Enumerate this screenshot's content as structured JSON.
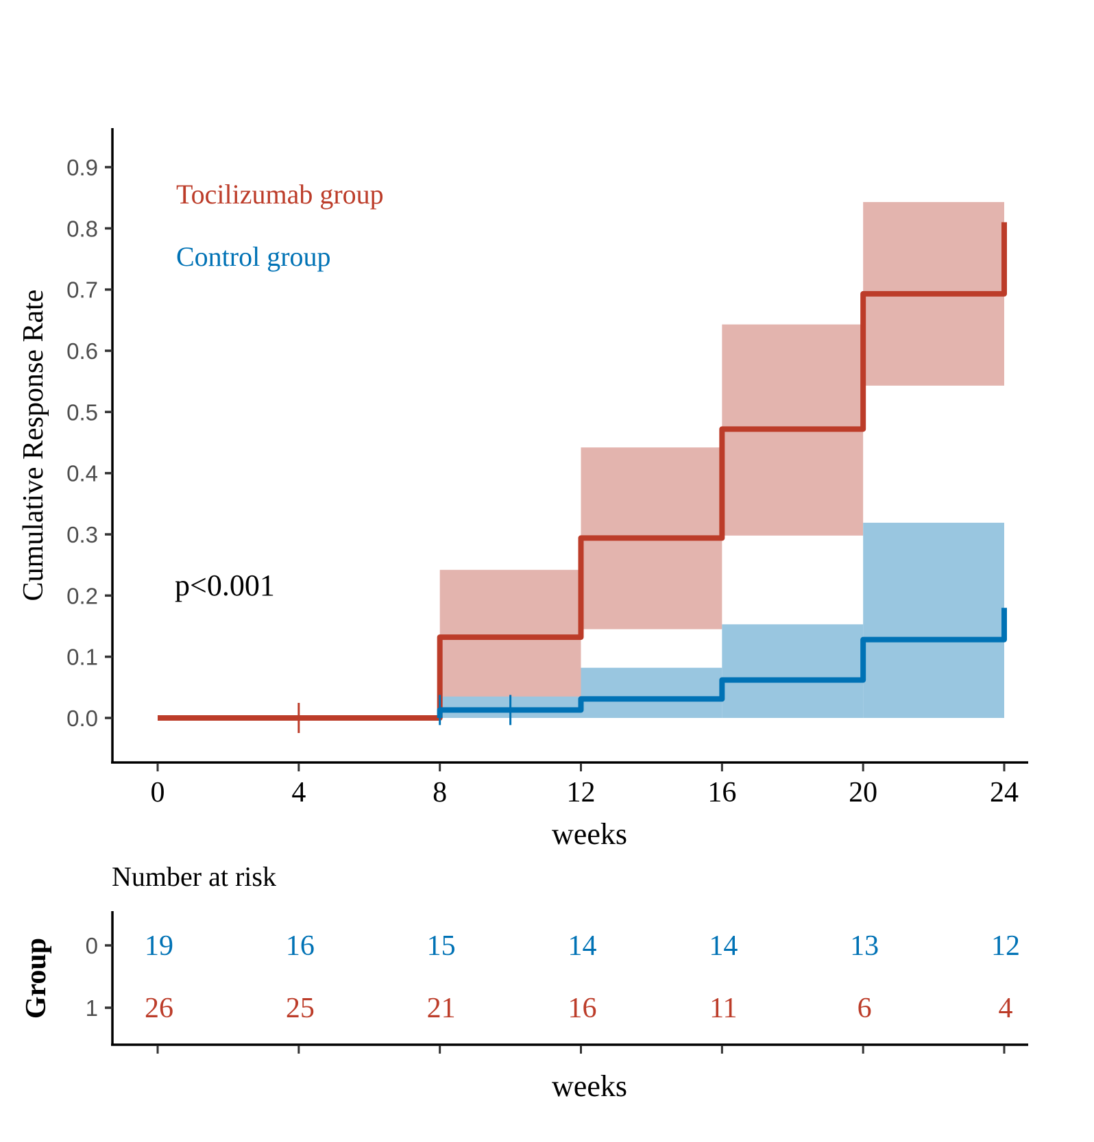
{
  "chart_data": {
    "type": "line",
    "subtype": "kaplan-meier-cumulative-step",
    "title": "",
    "xlabel": "weeks",
    "ylabel": "Cumulative Response Rate",
    "xlim": [
      -1.3,
      24.6
    ],
    "ylim": [
      -0.072,
      0.965
    ],
    "x_ticks": [
      0,
      4,
      8,
      12,
      16,
      20,
      24
    ],
    "x_tick_labels": [
      "0",
      "4",
      "8",
      "12",
      "16",
      "20",
      "24"
    ],
    "y_ticks": [
      0.0,
      0.1,
      0.2,
      0.3,
      0.4,
      0.5,
      0.6,
      0.7,
      0.8,
      0.9
    ],
    "y_tick_labels": [
      "0.0",
      "0.1",
      "0.2",
      "0.3",
      "0.4",
      "0.5",
      "0.6",
      "0.7",
      "0.8",
      "0.9"
    ],
    "grid": false,
    "legend_placement": "top-left",
    "annotation": "p<0.001",
    "series": [
      {
        "name": "Tocilizumab group",
        "color": "#BC3C29",
        "ci_color": "#E2B0AA",
        "steps": [
          {
            "x": [
              0,
              8
            ],
            "y": 0.0
          },
          {
            "x": [
              8,
              12
            ],
            "y": 0.132,
            "ci": [
              0.024,
              0.242
            ]
          },
          {
            "x": [
              12,
              16
            ],
            "y": 0.294,
            "ci": [
              0.145,
              0.442
            ]
          },
          {
            "x": [
              16,
              20
            ],
            "y": 0.472,
            "ci": [
              0.298,
              0.643
            ]
          },
          {
            "x": [
              20,
              24
            ],
            "y": 0.693,
            "ci": [
              0.543,
              0.843
            ]
          }
        ],
        "final_jump": {
          "x": 24,
          "y": 0.81
        },
        "censor_marks": [
          {
            "x": 4,
            "y": 0.0
          }
        ]
      },
      {
        "name": "Control group",
        "color": "#0072B5",
        "ci_color": "#99C6E0",
        "steps": [
          {
            "x": [
              8,
              12
            ],
            "y": 0.013,
            "ci": [
              0.0,
              0.035
            ]
          },
          {
            "x": [
              12,
              16
            ],
            "y": 0.031,
            "ci": [
              0.0,
              0.082
            ]
          },
          {
            "x": [
              16,
              20
            ],
            "y": 0.062,
            "ci": [
              0.0,
              0.153
            ]
          },
          {
            "x": [
              20,
              24
            ],
            "y": 0.128,
            "ci": [
              0.0,
              0.319
            ]
          }
        ],
        "final_jump": {
          "x": 24,
          "y": 0.18
        },
        "censor_marks": [
          {
            "x": 8,
            "y": 0.013
          },
          {
            "x": 10,
            "y": 0.013
          }
        ]
      }
    ],
    "risk_table": {
      "title": "Number at risk",
      "ylabel": "Group",
      "xlabel": "weeks",
      "time_points": [
        0,
        4,
        8,
        12,
        16,
        20,
        24
      ],
      "rows": [
        {
          "group_label": "0",
          "color": "#0072B5",
          "values": [
            19,
            16,
            15,
            14,
            14,
            13,
            12
          ]
        },
        {
          "group_label": "1",
          "color": "#BC3C29",
          "values": [
            26,
            25,
            21,
            16,
            11,
            6,
            4
          ]
        }
      ]
    }
  }
}
